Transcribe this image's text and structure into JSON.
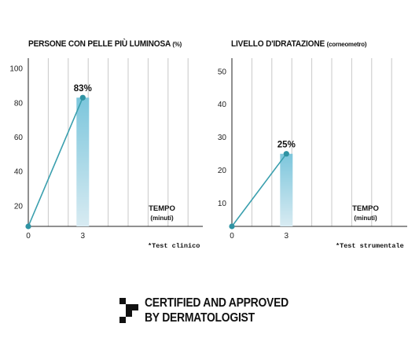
{
  "chart_data": [
    {
      "type": "line",
      "title": "PERSONE CON PELLE PIÙ LUMINOSA",
      "title_unit": "(%)",
      "xlabel": "TEMPO",
      "xlabel_sub": "(minuti)",
      "x_ticks": [
        "0",
        "3"
      ],
      "y_ticks": [
        "20",
        "40",
        "60",
        "80",
        "100"
      ],
      "ylim": [
        8,
        106
      ],
      "series": [
        {
          "x": [
            0,
            3
          ],
          "y": [
            8,
            83
          ]
        }
      ],
      "highlight_bar": {
        "x": 3,
        "value": 83,
        "label": "83%"
      },
      "grid": true,
      "footnote": "*Test clinico"
    },
    {
      "type": "line",
      "title": "LIVELLO D'IDRATAZIONE",
      "title_unit": "(corneometro)",
      "xlabel": "TEMPO",
      "xlabel_sub": "(minuti)",
      "x_ticks": [
        "0",
        "3"
      ],
      "y_ticks": [
        "10",
        "20",
        "30",
        "40",
        "50"
      ],
      "ylim": [
        3,
        54
      ],
      "series": [
        {
          "x": [
            0,
            3
          ],
          "y": [
            3,
            25
          ]
        }
      ],
      "highlight_bar": {
        "x": 3,
        "value": 25,
        "label": "25%"
      },
      "grid": true,
      "footnote": "*Test strumentale"
    }
  ],
  "certification": {
    "line1": "CERTIFIED AND APPROVED",
    "line2": "BY DERMATOLOGIST"
  },
  "colors": {
    "line": "#3a9fae",
    "marker": "#2f93a3",
    "bar_top": "#7cc6dc",
    "bar_bottom": "#d8ebf2",
    "grid": "#c8c8c8",
    "axis": "#222222"
  }
}
